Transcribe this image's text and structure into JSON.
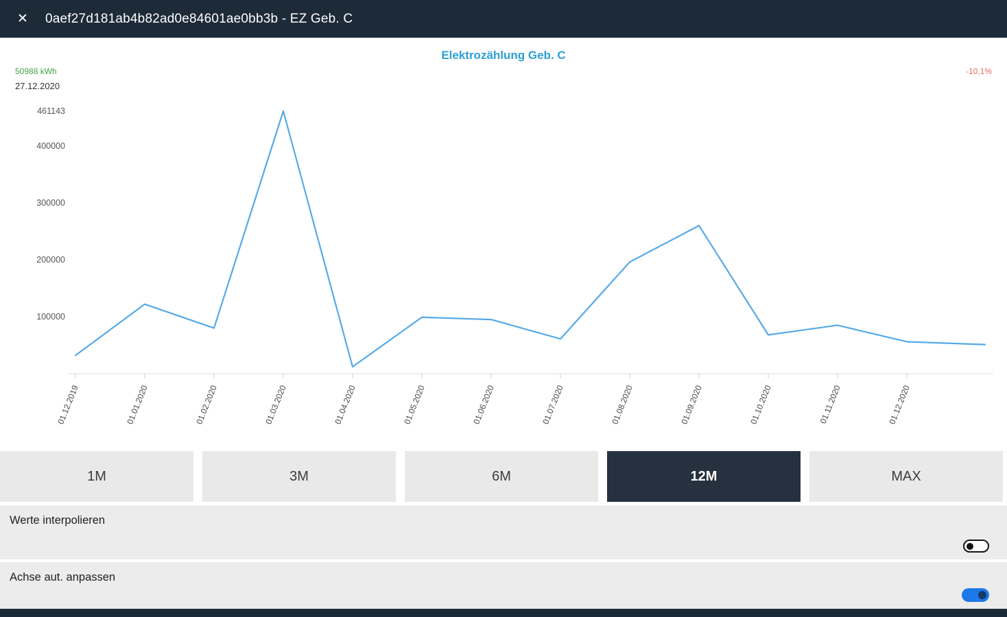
{
  "header": {
    "close_icon": "✕",
    "title": "0aef27d181ab4b82ad0e84601ae0bb3b - EZ Geb. C"
  },
  "chart": {
    "title": "Elektrozählung Geb. C",
    "current_value": "50988 kWh",
    "current_date": "27.12.2020",
    "change_percent": "-10,1%",
    "title_color": "#2d9ed6",
    "value_color": "#43a047",
    "change_color": "#e8685c"
  },
  "chart_data": {
    "type": "line",
    "title": "Elektrozählung Geb. C",
    "x": [
      "01.12.2019",
      "01.01.2020",
      "01.02.2020",
      "01.03.2020",
      "01.04.2020",
      "01.05.2020",
      "01.06.2020",
      "01.07.2020",
      "01.08.2020",
      "01.09.2020",
      "01.10.2020",
      "01.11.2020",
      "01.12.2020"
    ],
    "values": [
      32000,
      122000,
      80000,
      461143,
      12000,
      99000,
      95000,
      61000,
      196000,
      260000,
      68000,
      85000,
      56000
    ],
    "end_point": {
      "label": "27.12.2020",
      "value": 50988
    },
    "yticks": [
      461143,
      400000,
      300000,
      200000,
      100000
    ],
    "ylim": [
      0,
      480000
    ],
    "xlabel": "",
    "ylabel": "",
    "grid": false,
    "legend": false,
    "line_color": "#55a9e8",
    "axis_color": "#dcdcdc",
    "tick_label_color": "#4a4a4a"
  },
  "range_buttons": [
    {
      "label": "1M",
      "selected": false
    },
    {
      "label": "3M",
      "selected": false
    },
    {
      "label": "6M",
      "selected": false
    },
    {
      "label": "12M",
      "selected": true
    },
    {
      "label": "MAX",
      "selected": false
    }
  ],
  "settings": [
    {
      "label": "Werte interpolieren",
      "enabled": false
    },
    {
      "label": "Achse aut. anpassen",
      "enabled": true
    }
  ]
}
